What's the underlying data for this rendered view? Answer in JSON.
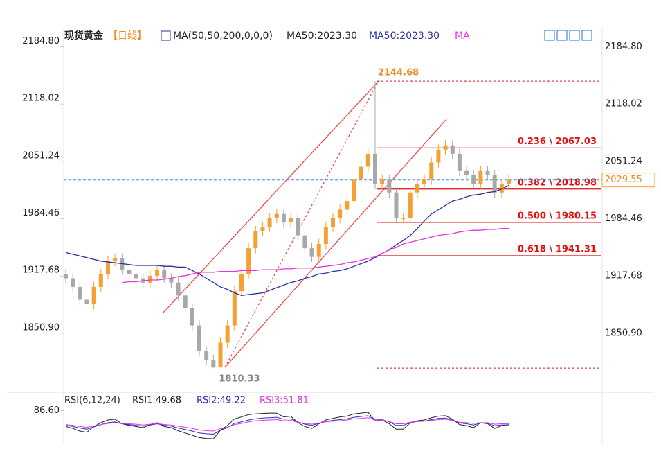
{
  "chart_data": [
    {
      "type": "candlestick",
      "title": "现货黄金",
      "subtitle": "【日线】",
      "indicator": "MA(50,50,200,0,0,0)",
      "indicator_value": "MA50:2023.30",
      "open": [
        1920,
        1915,
        1905,
        1890,
        1885,
        1905,
        1920,
        1935,
        1938,
        1925,
        1920,
        1915,
        1910,
        1918,
        1925,
        1915,
        1910,
        1895,
        1880,
        1860,
        1830,
        1820,
        1812,
        1840,
        1860,
        1900,
        1920,
        1950,
        1970,
        1975,
        1985,
        1990,
        1980,
        1985,
        1965,
        1950,
        1940,
        1955,
        1975,
        1985,
        1995,
        2005,
        2030,
        2045,
        2060,
        2025,
        2030,
        2015,
        1985,
        1985,
        2015,
        2025,
        2030,
        2050,
        2065,
        2070,
        2060,
        2040,
        2035,
        2025,
        2040,
        2035,
        2015,
        2025
      ],
      "high": [
        1926,
        1921,
        1911,
        1896,
        1911,
        1926,
        1941,
        1944,
        1944,
        1931,
        1926,
        1921,
        1924,
        1931,
        1931,
        1921,
        1916,
        1901,
        1886,
        1866,
        1836,
        1826,
        1846,
        1866,
        1906,
        1926,
        1956,
        1976,
        1981,
        1991,
        1996,
        1996,
        1991,
        1991,
        1971,
        1956,
        1961,
        1981,
        1991,
        2001,
        2011,
        2036,
        2051,
        2066,
        2144.68,
        2036,
        2036,
        2021,
        1991,
        2021,
        2031,
        2036,
        2056,
        2071,
        2076,
        2076,
        2066,
        2046,
        2041,
        2046,
        2046,
        2041,
        2031,
        2036
      ],
      "low": [
        1909,
        1899,
        1884,
        1879,
        1879,
        1899,
        1914,
        1929,
        1919,
        1914,
        1909,
        1904,
        1904,
        1912,
        1909,
        1904,
        1889,
        1874,
        1854,
        1824,
        1814,
        1810.33,
        1811,
        1834,
        1854,
        1894,
        1914,
        1944,
        1964,
        1969,
        1979,
        1974,
        1974,
        1959,
        1944,
        1934,
        1934,
        1949,
        1969,
        1979,
        1989,
        1999,
        2024,
        2039,
        2019,
        2019,
        2009,
        1979,
        1979,
        1979,
        2009,
        2019,
        2024,
        2044,
        2059,
        2054,
        2034,
        2029,
        2019,
        2019,
        2029,
        2009,
        2009,
        2019
      ],
      "close": [
        1915,
        1905,
        1890,
        1885,
        1905,
        1920,
        1935,
        1938,
        1925,
        1920,
        1915,
        1910,
        1918,
        1925,
        1915,
        1910,
        1895,
        1880,
        1860,
        1830,
        1820,
        1812,
        1840,
        1860,
        1900,
        1920,
        1950,
        1970,
        1975,
        1985,
        1990,
        1980,
        1985,
        1965,
        1950,
        1940,
        1955,
        1975,
        1985,
        1995,
        2005,
        2030,
        2045,
        2060,
        2025,
        2030,
        2015,
        1985,
        1985,
        2015,
        2025,
        2030,
        2050,
        2065,
        2070,
        2060,
        2040,
        2035,
        2025,
        2040,
        2035,
        2015,
        2025,
        2029.55
      ],
      "up_color": "#f5a033",
      "down_color": "#a8a8a8",
      "series": [
        {
          "name": "MA50:2023.30",
          "color": "#2b2f9e",
          "values": [
            1945,
            1943,
            1941,
            1939,
            1937,
            1935,
            1934,
            1933,
            1932,
            1931,
            1930,
            1930,
            1930,
            1930,
            1929,
            1929,
            1928,
            1928,
            1924,
            1920,
            1915,
            1910,
            1905,
            1902,
            1898,
            1895,
            1896,
            1897,
            1898,
            1901,
            1904,
            1907,
            1910,
            1912,
            1915,
            1917,
            1920,
            1921,
            1923,
            1924,
            1926,
            1929,
            1932,
            1935,
            1939,
            1944,
            1948,
            1954,
            1959,
            1965,
            1973,
            1982,
            1990,
            1995,
            2000,
            2005,
            2007,
            2010,
            2012,
            2013,
            2015,
            2016,
            2019,
            2023.3
          ]
        },
        {
          "name": "MA",
          "color": "#e433e4",
          "values": [
            null,
            null,
            null,
            null,
            null,
            null,
            null,
            null,
            1910,
            1911,
            1911,
            1912,
            1913,
            1913,
            1914,
            1915,
            1917,
            1918,
            1920,
            1922,
            1922,
            1922,
            1923,
            1923,
            1923,
            1924,
            1924,
            1924,
            1925,
            1925,
            1925,
            1926,
            1926,
            1927,
            1927,
            1927,
            1928,
            1929,
            1930,
            1931,
            1933,
            1934,
            1936,
            1938,
            1940,
            1944,
            1948,
            1951,
            1955,
            1957,
            1959,
            1961,
            1963,
            1965,
            1966,
            1967,
            1969,
            1970,
            1971,
            1971,
            1972,
            1972,
            1973,
            1973
          ]
        }
      ],
      "ylim": [
        1787,
        2207
      ],
      "yticks": [
        {
          "value": 2184.8,
          "label": "2184.80"
        },
        2118.02,
        2051.24,
        1984.46,
        1917.68,
        {
          "value": 1850.9,
          "label": "1850.90"
        }
      ],
      "peak": 2144.68,
      "trough": 1810.33,
      "fib_levels": [
        {
          "label": "0.236 \\ 2067.03",
          "value": 2067.03
        },
        {
          "label": "0.382 \\ 2018.98",
          "value": 2018.98
        },
        {
          "label": "0.500 \\ 1980.15",
          "value": 1980.15
        },
        {
          "label": "0.618 \\ 1941.31",
          "value": 1941.31
        }
      ],
      "last_price": 2029.55
    },
    {
      "type": "line",
      "title": "RSI(6,12,24)",
      "series": [
        {
          "name": "RSI1:49.68",
          "color": "#222222",
          "values": [
            45,
            40,
            33,
            30,
            45,
            55,
            62,
            64,
            52,
            48,
            45,
            42,
            50,
            55,
            45,
            42,
            34,
            28,
            22,
            16,
            14,
            13,
            35,
            48,
            65,
            70,
            76,
            78,
            79,
            80,
            80,
            70,
            72,
            55,
            45,
            40,
            52,
            62,
            66,
            70,
            72,
            78,
            80,
            82,
            60,
            62,
            52,
            38,
            38,
            55,
            60,
            62,
            68,
            72,
            73,
            64,
            50,
            47,
            42,
            55,
            52,
            40,
            47,
            49.68
          ]
        },
        {
          "name": "RSI2:49.22",
          "color": "#2b2fbe",
          "values": [
            48,
            45,
            41,
            38,
            44,
            50,
            55,
            57,
            52,
            50,
            48,
            46,
            49,
            52,
            48,
            46,
            41,
            37,
            33,
            28,
            26,
            25,
            35,
            42,
            53,
            57,
            62,
            65,
            67,
            68,
            69,
            64,
            65,
            57,
            51,
            48,
            53,
            58,
            61,
            63,
            65,
            69,
            71,
            73,
            62,
            63,
            57,
            48,
            48,
            55,
            58,
            59,
            63,
            66,
            67,
            62,
            54,
            52,
            49,
            54,
            53,
            47,
            49,
            49.22
          ]
        },
        {
          "name": "RSI3:51.81",
          "color": "#e433e4",
          "values": [
            50,
            48,
            45,
            43,
            46,
            50,
            53,
            55,
            53,
            52,
            51,
            49,
            51,
            53,
            50,
            49,
            46,
            43,
            40,
            36,
            34,
            33,
            39,
            43,
            50,
            53,
            57,
            60,
            61,
            62,
            63,
            60,
            61,
            56,
            53,
            51,
            54,
            57,
            59,
            60,
            62,
            65,
            66,
            68,
            61,
            62,
            58,
            52,
            52,
            56,
            58,
            59,
            61,
            63,
            64,
            61,
            56,
            55,
            53,
            55,
            55,
            51,
            52,
            51.81
          ]
        }
      ],
      "ylim": [
        15,
        100
      ],
      "yticks": [
        {
          "value": 86.6,
          "label": "86.60"
        }
      ]
    }
  ]
}
